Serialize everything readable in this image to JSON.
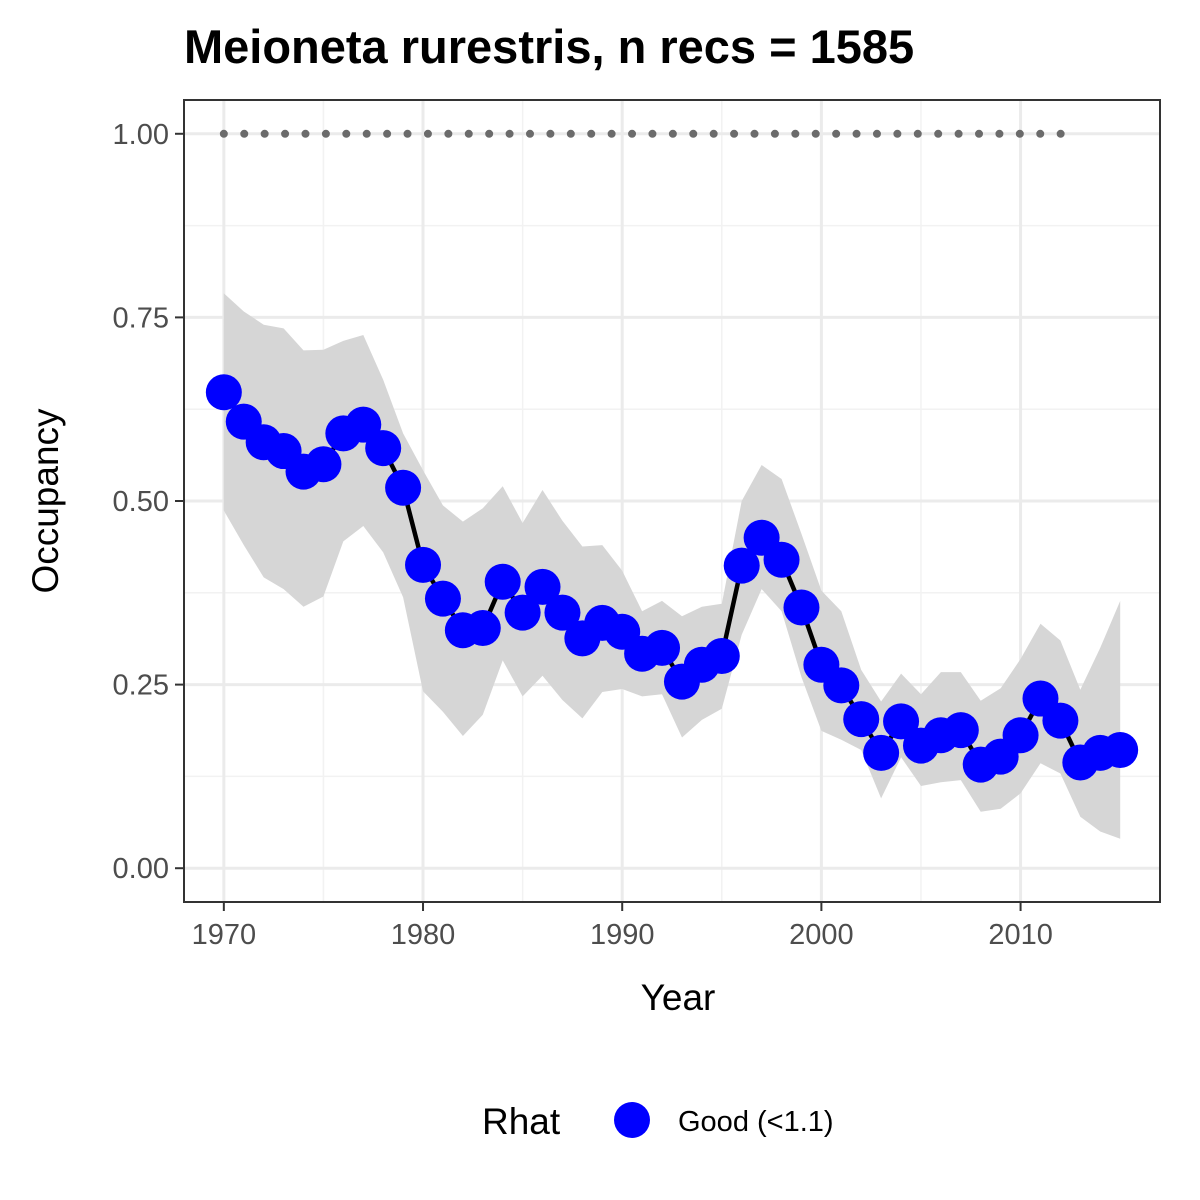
{
  "chart_data": {
    "type": "line",
    "title": "Meioneta rurestris, n recs = 1585",
    "xlabel": "Year",
    "ylabel": "Occupancy",
    "xlim": [
      1968,
      2017
    ],
    "ylim": [
      -0.046,
      1.046
    ],
    "x_ticks": [
      1970,
      1980,
      1990,
      2000,
      2010
    ],
    "x_tick_labels": [
      "1970",
      "1980",
      "1990",
      "2000",
      "2010"
    ],
    "y_ticks": [
      0,
      0.25,
      0.5,
      0.75,
      1.0
    ],
    "y_tick_labels": [
      "0.00",
      "0.25",
      "0.50",
      "0.75",
      "1.00"
    ],
    "grid": true,
    "legend": {
      "title": "Rhat",
      "position": "bottom",
      "entries": [
        {
          "label": "Good (<1.1)",
          "color": "#0000ff"
        }
      ]
    },
    "colors": {
      "points": "#0000ff",
      "line": "#000000",
      "ribbon": "#d6d6d6",
      "reference": "#6b6b6b"
    },
    "reference_line": {
      "y": 1.0,
      "x_start": 1970,
      "x_end": 2013,
      "style": "dotted"
    },
    "series": [
      {
        "name": "Good (<1.1)",
        "x": [
          1970,
          1971,
          1972,
          1973,
          1974,
          1975,
          1976,
          1977,
          1978,
          1979,
          1980,
          1981,
          1982,
          1983,
          1984,
          1985,
          1986,
          1987,
          1988,
          1989,
          1990,
          1991,
          1992,
          1993,
          1994,
          1995,
          1996,
          1997,
          1998,
          1999,
          2000,
          2001,
          2002,
          2003,
          2004,
          2005,
          2006,
          2007,
          2008,
          2009,
          2010,
          2011,
          2012,
          2013,
          2014,
          2015
        ],
        "y": [
          0.648,
          0.608,
          0.58,
          0.568,
          0.54,
          0.55,
          0.592,
          0.604,
          0.572,
          0.518,
          0.413,
          0.367,
          0.324,
          0.327,
          0.39,
          0.348,
          0.383,
          0.348,
          0.313,
          0.334,
          0.322,
          0.292,
          0.3,
          0.254,
          0.277,
          0.289,
          0.412,
          0.45,
          0.42,
          0.355,
          0.277,
          0.249,
          0.203,
          0.157,
          0.2,
          0.167,
          0.181,
          0.188,
          0.141,
          0.152,
          0.181,
          0.231,
          0.201,
          0.144,
          0.157,
          0.161
        ],
        "lower": [
          0.487,
          0.44,
          0.396,
          0.38,
          0.356,
          0.37,
          0.445,
          0.466,
          0.43,
          0.369,
          0.241,
          0.213,
          0.18,
          0.209,
          0.283,
          0.234,
          0.262,
          0.229,
          0.204,
          0.24,
          0.244,
          0.234,
          0.237,
          0.178,
          0.202,
          0.217,
          0.318,
          0.38,
          0.35,
          0.26,
          0.187,
          0.175,
          0.161,
          0.095,
          0.151,
          0.112,
          0.117,
          0.12,
          0.077,
          0.081,
          0.102,
          0.143,
          0.129,
          0.07,
          0.05,
          0.04
        ]
      }
    ],
    "upper": [
      0.783,
      0.758,
      0.74,
      0.735,
      0.705,
      0.706,
      0.718,
      0.726,
      0.665,
      0.592,
      0.542,
      0.494,
      0.472,
      0.49,
      0.52,
      0.47,
      0.515,
      0.473,
      0.438,
      0.44,
      0.405,
      0.35,
      0.364,
      0.343,
      0.356,
      0.36,
      0.5,
      0.549,
      0.53,
      0.455,
      0.378,
      0.35,
      0.27,
      0.227,
      0.265,
      0.237,
      0.267,
      0.267,
      0.228,
      0.245,
      0.285,
      0.333,
      0.31,
      0.243,
      0.3,
      0.364
    ]
  }
}
